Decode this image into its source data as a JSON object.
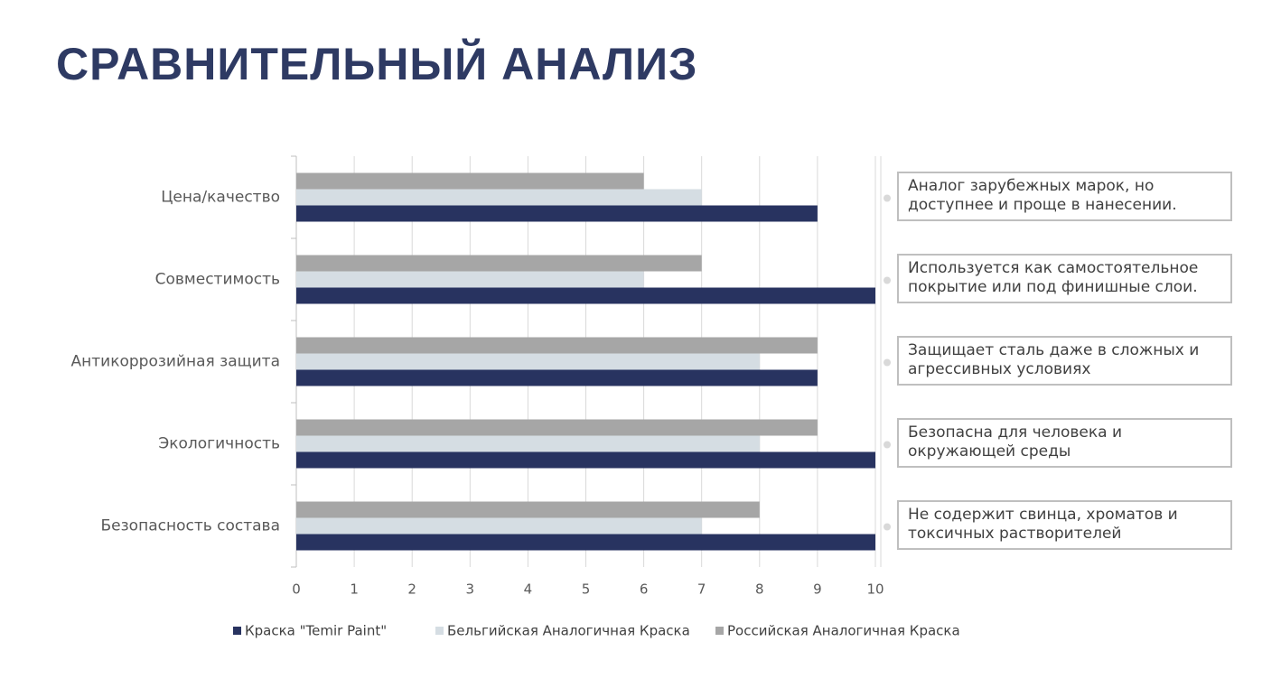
{
  "chart_data": {
    "type": "bar",
    "orientation": "horizontal",
    "title": "СРАВНИТЕЛЬНЫЙ АНАЛИЗ",
    "categories": [
      "Цена/качество",
      "Совместимость",
      "Антикоррозийная защита",
      "Экологичность",
      "Безопасность состава"
    ],
    "series": [
      {
        "name": "Краска \"Temir Paint\"",
        "color": "#283360",
        "values": [
          9,
          10,
          9,
          10,
          10
        ]
      },
      {
        "name": "Бельгийская Аналогичная Краска",
        "color": "#d5dde3",
        "values": [
          7,
          6,
          8,
          8,
          7
        ]
      },
      {
        "name": "Российская Аналогичная Краска",
        "color": "#a6a6a6",
        "values": [
          6,
          7,
          9,
          9,
          8
        ]
      }
    ],
    "xlim": [
      0,
      10
    ],
    "xticks": [
      0,
      1,
      2,
      3,
      4,
      5,
      6,
      7,
      8,
      9,
      10
    ],
    "grid": true,
    "legend": "bottom",
    "annotations": [
      "Аналог зарубежных марок, но доступнее и проще в нанесении.",
      "Используется как самостоятельное покрытие или под финишные слои.",
      "Защищает сталь даже в сложных и агрессивных условиях",
      "Безопасна для человека и окружающей среды",
      "Не содержит свинца, хроматов и токсичных растворителей"
    ]
  }
}
